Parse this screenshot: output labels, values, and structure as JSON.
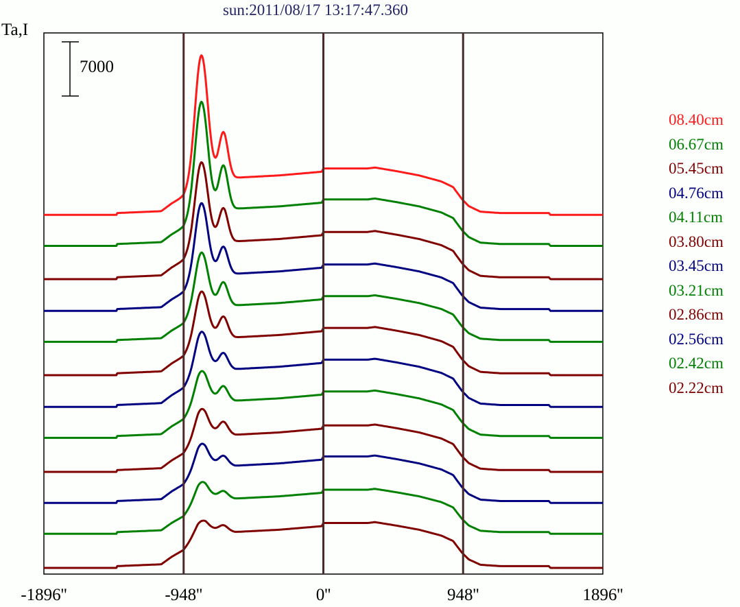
{
  "chart_data": {
    "type": "line",
    "title": "sun:2011/08/17 13:17:47.360",
    "ylabel": "Ta,I",
    "xlabel": "",
    "scale_bar": {
      "value": 7000,
      "label": "7000"
    },
    "xlim": [
      -1896,
      1896
    ],
    "xticks": [
      -1896,
      -948,
      0,
      948,
      1896
    ],
    "xtick_labels": [
      "-1896''",
      "-948''",
      "0''",
      "948''",
      "1896''"
    ],
    "vlines": [
      -948,
      0,
      948
    ],
    "vline_color": "#4a2a2a",
    "grid": false,
    "legend_position": "right",
    "disk_profile": {
      "x": [
        -1896,
        -1400,
        -1399,
        -1100,
        -1028,
        -948,
        -900,
        -850,
        -800,
        -600,
        -300,
        -10,
        0,
        300,
        350,
        500,
        650,
        800,
        880,
        940,
        986,
        1065,
        1200,
        1530,
        1540,
        1896
      ],
      "y": [
        0,
        0,
        0.04,
        0.08,
        0.25,
        0.4,
        0.6,
        0.8,
        0.88,
        0.8,
        0.85,
        0.93,
        1.0,
        1.0,
        1.02,
        0.94,
        0.85,
        0.72,
        0.6,
        0.34,
        0.19,
        0.07,
        0.04,
        0.04,
        0,
        0
      ]
    },
    "peak1": {
      "center": -828,
      "sigma": 42
    },
    "peak2": {
      "center": -678,
      "sigma": 30
    },
    "series": [
      {
        "name": "08.40cm",
        "color": "#ff1a1a",
        "offset": 45600,
        "disk": 6000,
        "peak1": 15600,
        "peak2": 5700
      },
      {
        "name": "06.67cm",
        "color": "#008000",
        "offset": 41600,
        "disk": 6000,
        "peak1": 13600,
        "peak2": 5400
      },
      {
        "name": "05.45cm",
        "color": "#800000",
        "offset": 37300,
        "disk": 6100,
        "peak1": 10000,
        "peak2": 4100
      },
      {
        "name": "04.76cm",
        "color": "#000080",
        "offset": 33200,
        "disk": 6000,
        "peak1": 8900,
        "peak2": 3300
      },
      {
        "name": "04.11cm",
        "color": "#008000",
        "offset": 29200,
        "disk": 5900,
        "peak1": 6600,
        "peak2": 2800
      },
      {
        "name": "03.80cm",
        "color": "#800000",
        "offset": 24900,
        "disk": 6100,
        "peak1": 5700,
        "peak2": 2500
      },
      {
        "name": "03.45cm",
        "color": "#000080",
        "offset": 20800,
        "disk": 6100,
        "peak1": 4600,
        "peak2": 1900
      },
      {
        "name": "03.21cm",
        "color": "#008000",
        "offset": 16800,
        "disk": 6000,
        "peak1": 3600,
        "peak2": 1700
      },
      {
        "name": "02.86cm",
        "color": "#800000",
        "offset": 12400,
        "disk": 6000,
        "peak1": 3100,
        "peak2": 1500
      },
      {
        "name": "02.56cm",
        "color": "#000080",
        "offset": 8400,
        "disk": 6000,
        "peak1": 2600,
        "peak2": 1100
      },
      {
        "name": "02.42cm",
        "color": "#008000",
        "offset": 4400,
        "disk": 5700,
        "peak1": 1900,
        "peak2": 800
      },
      {
        "name": "02.22cm",
        "color": "#800000",
        "offset": 0,
        "disk": 5800,
        "peak1": 1200,
        "peak2": 700
      }
    ]
  }
}
